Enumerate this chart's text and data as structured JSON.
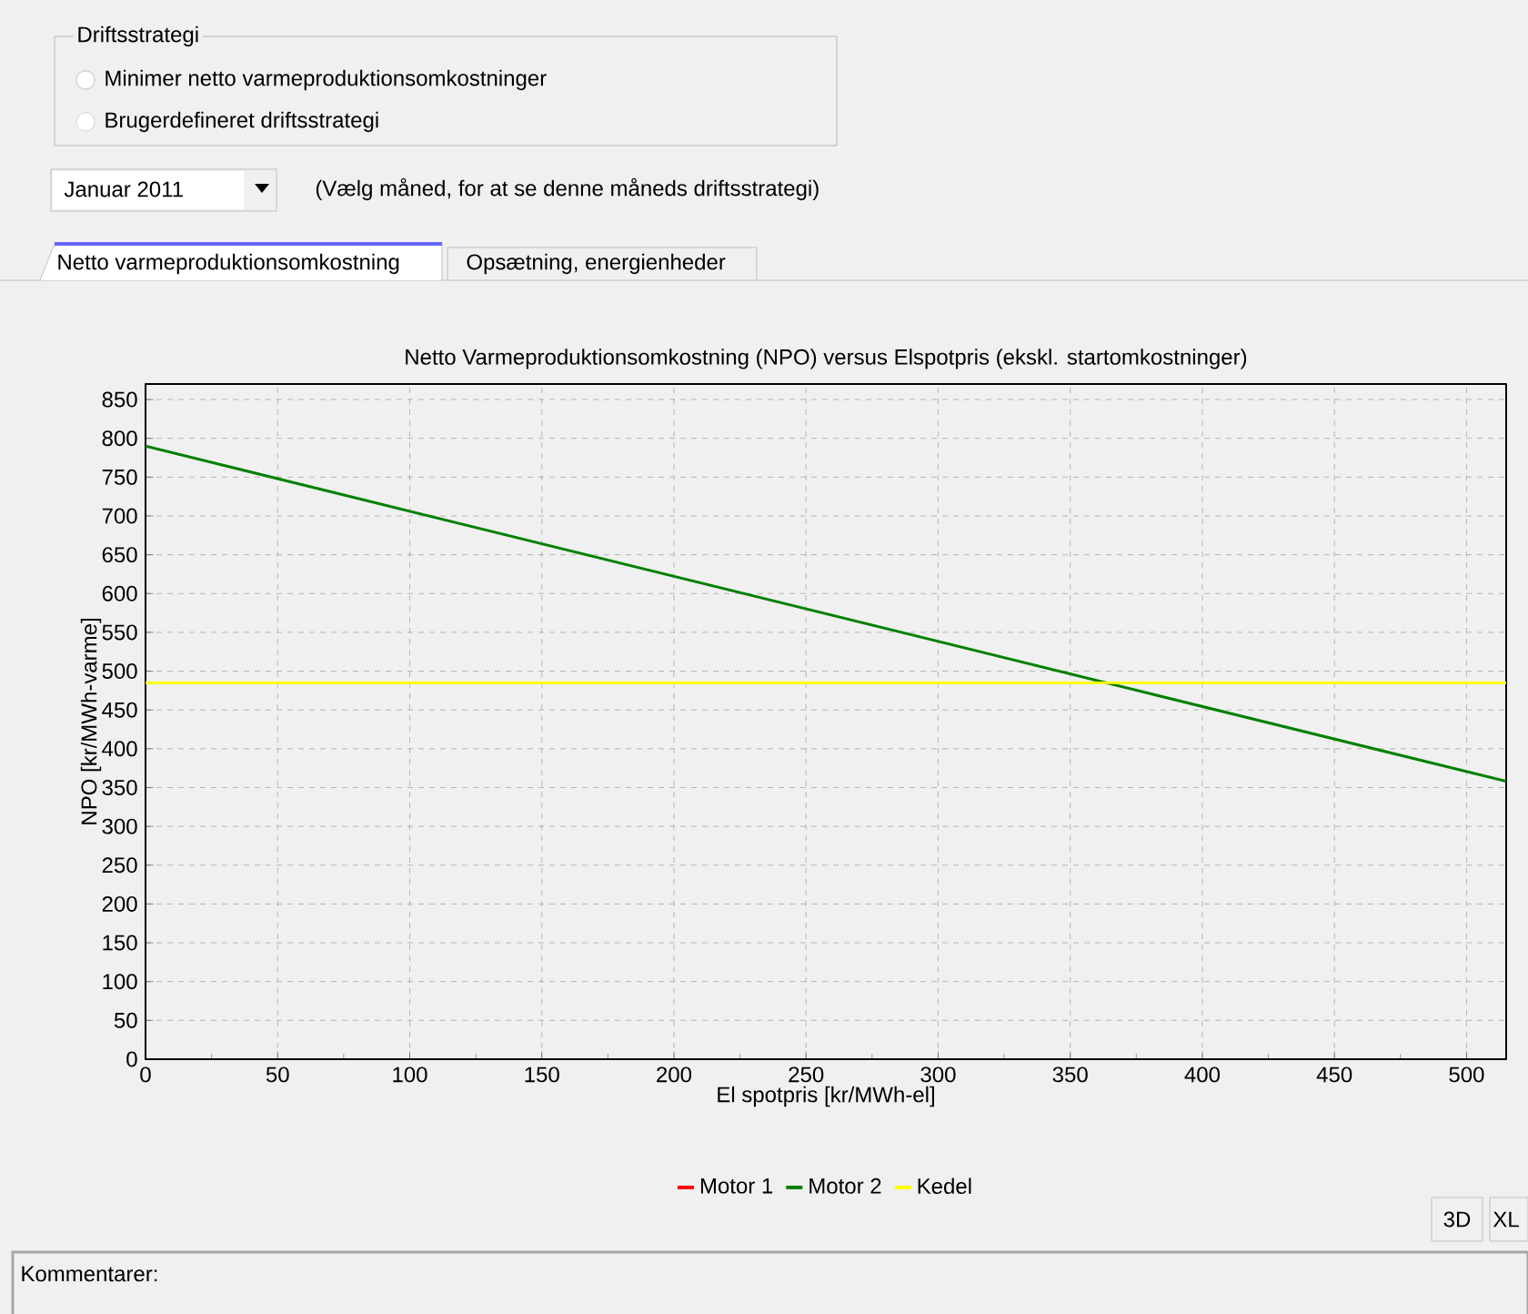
{
  "chart_data": {
    "type": "line",
    "title": "Netto Varmeproduktionsomkostning (NPO) versus Elspotpris (ekskl. startomkostninger)",
    "xlabel": "El spotpris [kr/MWh-el]",
    "ylabel": "NPO [kr/MWh-varme]",
    "x": [
      0,
      515
    ],
    "series": [
      {
        "name": "Motor 1",
        "color": "#ff0000",
        "values": [
          null,
          null
        ]
      },
      {
        "name": "Motor 2",
        "color": "#008000",
        "values": [
          790,
          358
        ]
      },
      {
        "name": "Kedel",
        "color": "#ffff00",
        "values": [
          485,
          485
        ]
      }
    ],
    "xlim": [
      0,
      515
    ],
    "ylim": [
      0,
      870
    ],
    "xticks": [
      0,
      50,
      100,
      150,
      200,
      250,
      300,
      350,
      400,
      450,
      500
    ],
    "yticks": [
      0,
      50,
      100,
      150,
      200,
      250,
      300,
      350,
      400,
      450,
      500,
      550,
      600,
      650,
      700,
      750,
      800,
      850
    ],
    "grid": true,
    "legend": "bottom",
    "marker": "none",
    "line_style": "solid",
    "annotations": [
      "Driftsstrategi",
      "Minimer netto varmeproduktionsomkostninger",
      "Brugerdefineret driftsstrategi",
      "Januar 2011",
      "(Vælg måned, for at se denne måneds driftsstrategi)",
      "Netto varmeproduktionsomkostning",
      "Opsætning, energienheder",
      "3D",
      "XL",
      "Kommentarer:"
    ]
  }
}
